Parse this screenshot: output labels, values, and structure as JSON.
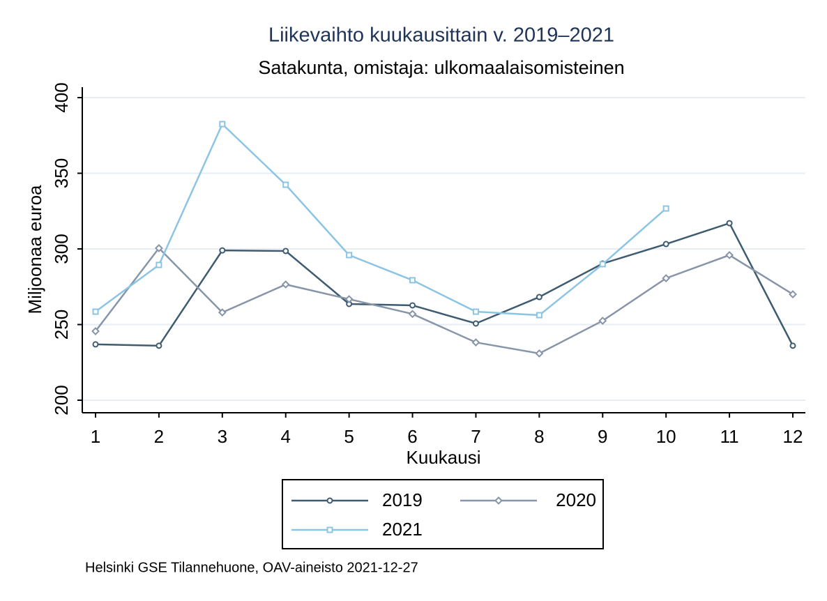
{
  "chart_data": {
    "type": "line",
    "title": "Liikevaihto kuukausittain v. 2019–2021",
    "subtitle": "Satakunta, omistaja: ulkomaalaisomisteinen",
    "x_label": "Kuukausi",
    "y_label": "Miljoonaa euroa",
    "source": "Helsinki GSE Tilannehuone, OAV-aineisto 2021-12-27",
    "x": [
      1,
      2,
      3,
      4,
      5,
      6,
      7,
      8,
      9,
      10,
      11,
      12
    ],
    "xlim": [
      1,
      12
    ],
    "xticks": [
      1,
      2,
      3,
      4,
      5,
      6,
      7,
      8,
      9,
      10,
      11,
      12
    ],
    "ylim": [
      200,
      400
    ],
    "yticks": [
      200,
      250,
      300,
      350,
      400
    ],
    "grid": true,
    "legend_position": "bottom",
    "series": [
      {
        "name": "2019",
        "color": "#3e5b70",
        "marker": "circle",
        "values": [
          236.9,
          236.0,
          299.0,
          298.6,
          263.6,
          262.7,
          250.7,
          268.2,
          290.3,
          303.2,
          317.0,
          236.0
        ]
      },
      {
        "name": "2020",
        "color": "#8795a8",
        "marker": "diamond",
        "values": [
          245.6,
          300.5,
          258.0,
          276.5,
          266.8,
          257.0,
          238.2,
          230.9,
          252.5,
          280.6,
          295.9,
          270.0
        ]
      },
      {
        "name": "2021",
        "color": "#8cc4e4",
        "marker": "square",
        "values": [
          258.5,
          289.4,
          382.5,
          342.4,
          295.9,
          279.3,
          258.5,
          256.2,
          289.9,
          326.7,
          null,
          null
        ]
      }
    ]
  }
}
